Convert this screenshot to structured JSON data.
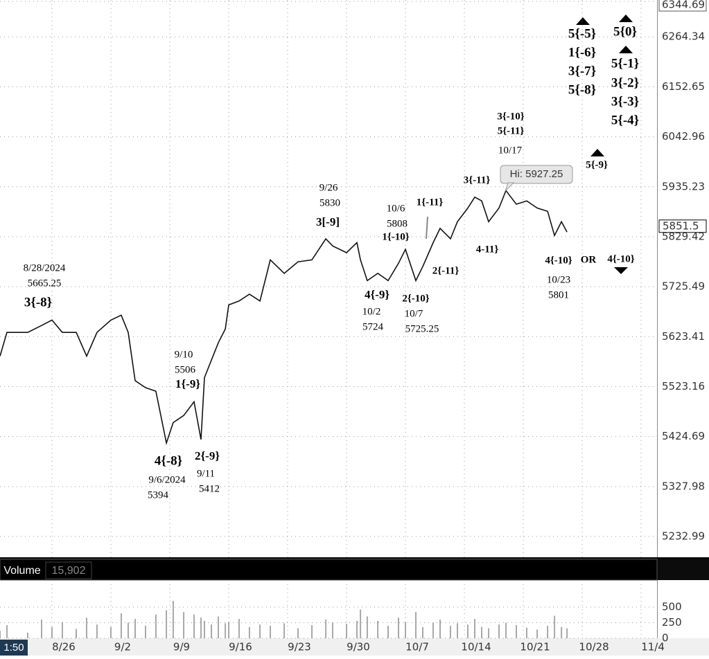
{
  "chart_data": {
    "type": "line",
    "log_scale": true,
    "grid": true,
    "color": "#111111",
    "x": [
      -5.41,
      -4.82,
      -3.06,
      -1.88,
      -1,
      -0.12,
      1.06,
      1.94,
      2.82,
      4,
      4.88,
      5.47,
      6.06,
      6.94,
      7.82,
      8.71,
      9.29,
      10.18,
      11.06,
      11.65,
      11.94,
      12.53,
      13.12,
      13.71,
      14,
      14.88,
      15.76,
      16.65,
      17.53,
      18.71,
      19.88,
      21.06,
      22.24,
      22.82,
      24,
      24.88,
      25.18,
      25.76,
      26.65,
      27.53,
      28.41,
      29,
      29.88,
      30.47,
      31.35,
      31.94,
      32.82,
      33.41,
      34.29,
      34.88,
      35.47,
      36.06,
      36.94,
      37.53,
      38.41,
      39.29,
      40.18,
      41.06,
      41.65,
      42.24,
      42.71
    ],
    "values": [
      5584,
      5632,
      5632,
      5646,
      5657,
      5632,
      5632,
      5584,
      5632,
      5657,
      5667,
      5632,
      5535,
      5521,
      5514,
      5412,
      5452,
      5466,
      5493,
      5419,
      5541,
      5576,
      5611,
      5639,
      5688,
      5696,
      5710,
      5696,
      5781,
      5753,
      5777,
      5781,
      5825,
      5810,
      5796,
      5817,
      5781,
      5738,
      5753,
      5738,
      5774,
      5803,
      5738,
      5767,
      5817,
      5847,
      5825,
      5861,
      5890,
      5913,
      5905,
      5861,
      5890,
      5927,
      5898,
      5905,
      5890,
      5883,
      5832,
      5861,
      5839
    ],
    "xlim": [
      -5.41,
      50.35
    ],
    "xticks": [
      {
        "value": -1,
        "label": "8/26"
      },
      {
        "value": 4,
        "label": "9/2"
      },
      {
        "value": 9,
        "label": "9/9"
      },
      {
        "value": 14,
        "label": "9/16"
      },
      {
        "value": 19,
        "label": "9/23"
      },
      {
        "value": 24,
        "label": "9/30"
      },
      {
        "value": 29,
        "label": "10/7"
      },
      {
        "value": 34,
        "label": "10/14"
      },
      {
        "value": 39,
        "label": "10/21"
      },
      {
        "value": 44,
        "label": "10/28"
      },
      {
        "value": 49,
        "label": "11/4"
      }
    ],
    "ylim": [
      5194,
      6348
    ],
    "yticks": [
      6344.69,
      6264.34,
      6152.65,
      6042.96,
      5935.23,
      5829.42,
      5725.49,
      5623.41,
      5523.16,
      5424.69,
      5327.98,
      5232.99
    ],
    "last_price": 5851.5,
    "high_callout": "Hi: 5927.25",
    "annotations": [
      "8/28/2024",
      "5665.25",
      "3{-8}",
      "9/10",
      "5506",
      "1{-9}",
      "4{-8}",
      "2{-9}",
      "9/6/2024",
      "5394",
      "9/11",
      "5412",
      "9/26",
      "5830",
      "3[-9]",
      "10/6",
      "5808",
      "1{-10}",
      "1{-11}",
      "4{-9}",
      "10/2",
      "5724",
      "2{-10}",
      "10/7",
      "5725.25",
      "2{-11}",
      "4-11}",
      "3{-11}",
      "3{-10}",
      "5{-11}",
      "10/17",
      "4{-10}",
      "OR",
      "4{-10}",
      "10/23",
      "5801",
      "5{-9}",
      "5{-5}",
      "1{-6}",
      "3{-7}",
      "5{-8}",
      "5{0}",
      "5{-1}",
      "3{-2}",
      "3{-3}",
      "5{-4}"
    ],
    "volume": {
      "title": "Volume",
      "readout": "15,902",
      "color": "#a8a8a8",
      "values": [
        120,
        210,
        90,
        300,
        180,
        260,
        150,
        330,
        220,
        180,
        400,
        250,
        310,
        200,
        380,
        450,
        600,
        420,
        380,
        330,
        280,
        220,
        350,
        240,
        260,
        310,
        180,
        220,
        200,
        240,
        160,
        210,
        300,
        250,
        230,
        280,
        460,
        350,
        280,
        200,
        330,
        260,
        420,
        180,
        250,
        300,
        200,
        240,
        220,
        310,
        180,
        160,
        220,
        250,
        210,
        170,
        140,
        200,
        360,
        180,
        160
      ],
      "ylim": [
        0,
        933
      ],
      "yticks": [
        0,
        250,
        500
      ]
    },
    "time_label": "1:50"
  }
}
